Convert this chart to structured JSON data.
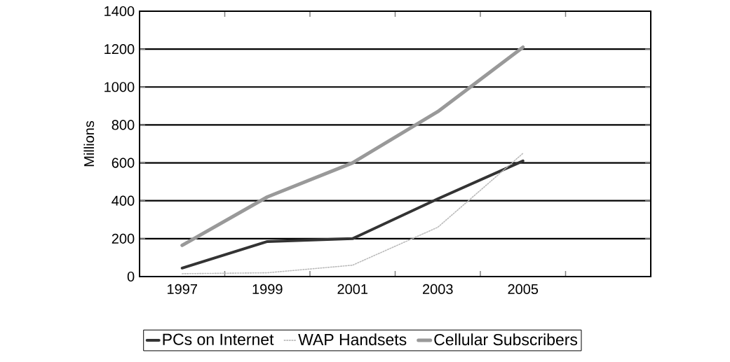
{
  "chart_data": {
    "type": "line",
    "ylabel": "Millions",
    "categories": [
      "1997",
      "1999",
      "2001",
      "2003",
      "2005",
      null
    ],
    "series": [
      {
        "name": "PCs on Internet",
        "color": "#333333",
        "values": [
          45,
          185,
          200,
          410,
          610,
          null
        ]
      },
      {
        "name": "WAP Handsets",
        "color": "#bbbbbb",
        "line_style": "dotted",
        "values": [
          15,
          20,
          60,
          260,
          650,
          null
        ]
      },
      {
        "name": "Cellular Subscribers",
        "color": "#999999",
        "values": [
          165,
          420,
          600,
          870,
          1210,
          null
        ]
      }
    ],
    "ylim": [
      0,
      1400
    ],
    "yticks": [
      0,
      200,
      400,
      600,
      800,
      1000,
      1200,
      1400
    ],
    "grid": "y",
    "legend": "bottom",
    "marker": "none",
    "line_style": "solid"
  }
}
